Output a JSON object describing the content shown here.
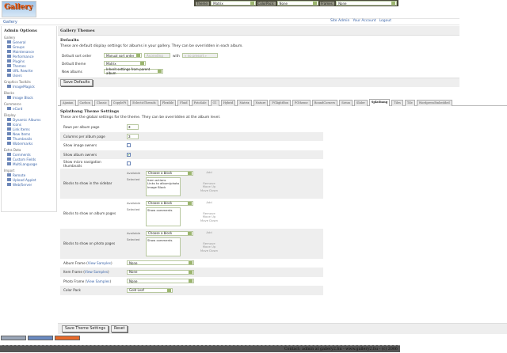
{
  "topbar": {
    "theme_label": "Theme:",
    "theme_value": "Matrix",
    "colorpack_label": "ColorPack:",
    "colorpack_value": "None",
    "frames_label": "Frames:",
    "frames_value": "None"
  },
  "logo_text": "Gallery",
  "breadcrumb": "Gallery",
  "userlinks": [
    "Site Admin",
    "Your Account",
    "Logout"
  ],
  "sidebar": {
    "title": "Admin Options",
    "groups": [
      {
        "label": "Gallery",
        "items": [
          "General",
          "Groups",
          "Maintenance",
          "Performance",
          "Plugins",
          "Themes",
          "URL Rewrite",
          "Users"
        ]
      },
      {
        "label": "Graphics Toolkits",
        "items": [
          "ImageMagick"
        ]
      },
      {
        "label": "Blocks",
        "items": [
          "Image Block"
        ]
      },
      {
        "label": "Commerce",
        "items": [
          "eCard"
        ]
      },
      {
        "label": "Display",
        "items": [
          "Dynamic Albums",
          "Icons",
          "Link Items",
          "New Items",
          "Thumbnails",
          "Watermarks"
        ]
      },
      {
        "label": "Extra Data",
        "items": [
          "Comments",
          "Custom Fields",
          "MultiLanguage"
        ]
      },
      {
        "label": "Import",
        "items": [
          "Remote",
          "Upload Applet",
          "Web/Server"
        ]
      }
    ],
    "current": "Themes"
  },
  "main": {
    "title": "Gallery Themes",
    "defaults_title": "Defaults",
    "defaults_desc": "These are default display settings for albums in your gallery. They can be overridden in each album.",
    "sort_label": "Default sort order",
    "sort_value": "Manual sort order",
    "sort_dir": "Ascending",
    "with_label": "with",
    "with_value": "« no presort »",
    "theme_label": "Default theme",
    "theme_value": "Matrix",
    "new_albums_label": "New albums",
    "new_albums_value": "Inherit settings from parent album",
    "save_defaults": "Save Defaults"
  },
  "tabs": [
    "Ajaxian",
    "Carbon",
    "Classic",
    "CopyleFt",
    "EclecticThreads",
    "Flexible",
    "Fluid",
    "FotoSale",
    "G1",
    "Hybrid",
    "Matrix",
    "Nature",
    "PGlightBox",
    "PGtheme",
    "RoundCorners",
    "Siriux",
    "Slider",
    "Splatbang",
    "Tiles",
    "Tile",
    "WordpressEmbedded"
  ],
  "active_tab": "Splatbang",
  "theme": {
    "title": "Splatbang Theme Settings",
    "desc": "These are the global settings for the theme. They can be overridden at the album level.",
    "rows_label": "Rows per album page",
    "rows_value": "3",
    "cols_label": "Columns per album page",
    "cols_value": "3",
    "img_owners_label": "Show image owners",
    "img_owners": false,
    "album_owners_label": "Show album owners",
    "album_owners": true,
    "micro_label": "Show micro navigation thumbnails",
    "micro": false,
    "available": "Available",
    "selected": "Selected",
    "choose": "Choose a block",
    "add": "Add",
    "remove": "Remove",
    "moveup": "Move Up",
    "movedown": "Move Down",
    "sidebar_blocks_label": "Blocks to show in the sidebar",
    "sidebar_blocks": "Item actions\nLinks to album/photo peers\nImage Block",
    "album_blocks_label": "Blocks to show on album pages",
    "album_blocks": "Show comments",
    "photo_blocks_label": "Blocks to show on photo pages",
    "photo_blocks": "Show comments",
    "view_samples": "View Samples",
    "album_frame_label": "Album Frame",
    "album_frame": "None",
    "item_frame_label": "Item Frame",
    "item_frame": "None",
    "photo_frame_label": "Photo Frame",
    "photo_frame": "None",
    "colorpack_label": "Color Pack",
    "colorpack": "Gold Leaf",
    "save": "Save Theme Settings",
    "reset": "Reset"
  },
  "footer": "Contact: admin at gallery2.hu - www.gallery2.hu - (c) 2006"
}
